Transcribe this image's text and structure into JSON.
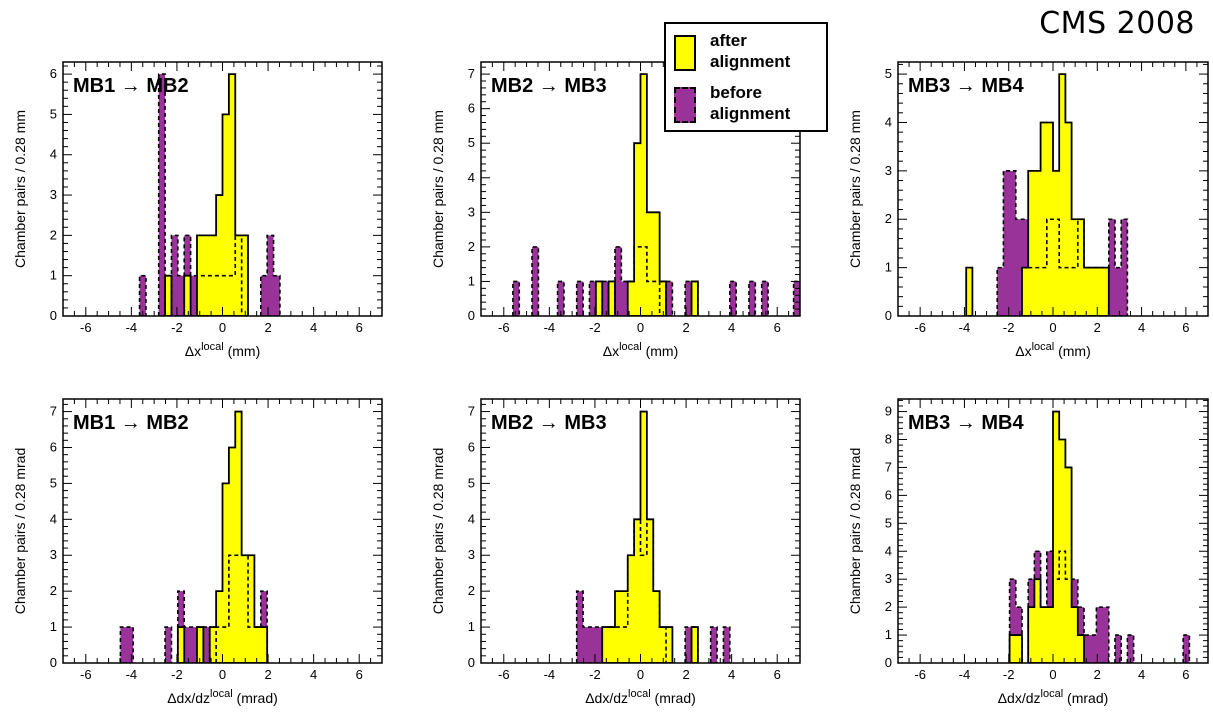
{
  "figure_label": "CMS 2008",
  "legend": {
    "after": {
      "label": "after\nalignment",
      "color": "#ffff00"
    },
    "before": {
      "label": "before\nalignment",
      "color": "#993399"
    }
  },
  "chart_data": [
    {
      "type": "bar",
      "title": "MB1 → MB2",
      "xlabel": "Δx^local (mm)",
      "ylabel": "Chamber pairs / 0.28 mm",
      "xlim": [
        -7,
        7
      ],
      "ylim": [
        0,
        6.3
      ],
      "bin_width": 0.28,
      "xticks": [
        -6,
        -4,
        -2,
        0,
        2,
        4,
        6
      ],
      "yticks": [
        0,
        1,
        2,
        3,
        4,
        5,
        6
      ],
      "series": [
        {
          "name": "after alignment",
          "bins": [
            [
              -2.52,
              1
            ],
            [
              -1.68,
              1
            ],
            [
              -1.12,
              2
            ],
            [
              -0.84,
              2
            ],
            [
              -0.56,
              2
            ],
            [
              -0.28,
              3
            ],
            [
              0,
              5
            ],
            [
              0.28,
              6
            ],
            [
              0.56,
              2
            ],
            [
              0.84,
              2
            ]
          ]
        },
        {
          "name": "before alignment",
          "bins": [
            [
              -3.64,
              1
            ],
            [
              -2.8,
              6
            ],
            [
              -2.24,
              2
            ],
            [
              -1.96,
              1
            ],
            [
              -1.68,
              2
            ],
            [
              -1.4,
              1
            ],
            [
              -1.12,
              1
            ],
            [
              -0.84,
              1
            ],
            [
              -0.56,
              1
            ],
            [
              -0.28,
              1
            ],
            [
              0,
              1
            ],
            [
              0.28,
              1
            ],
            [
              0.56,
              2
            ],
            [
              1.68,
              1
            ],
            [
              1.96,
              2
            ],
            [
              2.24,
              1
            ]
          ]
        }
      ]
    },
    {
      "type": "bar",
      "title": "MB2 → MB3",
      "xlabel": "Δx^local (mm)",
      "ylabel": "Chamber pairs / 0.28 mm",
      "xlim": [
        -7,
        7
      ],
      "ylim": [
        0,
        7.35
      ],
      "bin_width": 0.28,
      "xticks": [
        -6,
        -4,
        -2,
        0,
        2,
        4,
        6
      ],
      "yticks": [
        0,
        1,
        2,
        3,
        4,
        5,
        6,
        7
      ],
      "series": [
        {
          "name": "after alignment",
          "bins": [
            [
              -1.96,
              1
            ],
            [
              -1.4,
              1
            ],
            [
              -0.56,
              1
            ],
            [
              -0.28,
              5
            ],
            [
              0,
              7
            ],
            [
              0.28,
              3
            ],
            [
              0.56,
              3
            ],
            [
              0.84,
              1
            ],
            [
              2.24,
              1
            ]
          ]
        },
        {
          "name": "before alignment",
          "bins": [
            [
              -5.6,
              1
            ],
            [
              -4.76,
              2
            ],
            [
              -3.64,
              1
            ],
            [
              -2.8,
              1
            ],
            [
              -2.24,
              1
            ],
            [
              -1.68,
              1
            ],
            [
              -1.12,
              2
            ],
            [
              -0.84,
              1
            ],
            [
              -0.56,
              1
            ],
            [
              -0.28,
              2
            ],
            [
              0,
              2
            ],
            [
              0.28,
              1
            ],
            [
              0.56,
              1
            ],
            [
              1.12,
              1
            ],
            [
              1.96,
              1
            ],
            [
              2.24,
              1
            ],
            [
              3.92,
              1
            ],
            [
              4.76,
              1
            ],
            [
              5.32,
              1
            ],
            [
              6.72,
              1
            ]
          ]
        }
      ]
    },
    {
      "type": "bar",
      "title": "MB3 → MB4",
      "xlabel": "Δx^local (mm)",
      "ylabel": "Chamber pairs / 0.28 mm",
      "xlim": [
        -7,
        7
      ],
      "ylim": [
        0,
        5.25
      ],
      "bin_width": 0.28,
      "xticks": [
        -6,
        -4,
        -2,
        0,
        2,
        4,
        6
      ],
      "yticks": [
        0,
        1,
        2,
        3,
        4,
        5
      ],
      "series": [
        {
          "name": "after alignment",
          "bins": [
            [
              -3.92,
              1
            ],
            [
              -1.4,
              1
            ],
            [
              -1.12,
              3
            ],
            [
              -0.84,
              3
            ],
            [
              -0.56,
              4
            ],
            [
              -0.28,
              4
            ],
            [
              0,
              3
            ],
            [
              0.28,
              5
            ],
            [
              0.56,
              4
            ],
            [
              0.84,
              2
            ],
            [
              1.12,
              2
            ],
            [
              1.4,
              1
            ],
            [
              1.68,
              1
            ],
            [
              1.96,
              1
            ],
            [
              2.24,
              1
            ]
          ]
        },
        {
          "name": "before alignment",
          "bins": [
            [
              -2.52,
              1
            ],
            [
              -2.24,
              3
            ],
            [
              -1.96,
              3
            ],
            [
              -1.68,
              2
            ],
            [
              -1.4,
              2
            ],
            [
              -1.12,
              1
            ],
            [
              -0.84,
              1
            ],
            [
              -0.56,
              1
            ],
            [
              -0.28,
              2
            ],
            [
              0,
              2
            ],
            [
              0.28,
              1
            ],
            [
              0.56,
              1
            ],
            [
              0.84,
              1
            ],
            [
              1.12,
              2
            ],
            [
              1.4,
              1
            ],
            [
              1.68,
              1
            ],
            [
              1.96,
              1
            ],
            [
              2.24,
              1
            ],
            [
              2.52,
              2
            ],
            [
              2.8,
              1
            ],
            [
              3.08,
              2
            ]
          ]
        }
      ]
    },
    {
      "type": "bar",
      "title": "MB1 → MB2",
      "xlabel": "Δdx/dz^local (mrad)",
      "ylabel": "Chamber pairs / 0.28 mrad",
      "xlim": [
        -7,
        7
      ],
      "ylim": [
        0,
        7.35
      ],
      "bin_width": 0.28,
      "xticks": [
        -6,
        -4,
        -2,
        0,
        2,
        4,
        6
      ],
      "yticks": [
        0,
        1,
        2,
        3,
        4,
        5,
        6,
        7
      ],
      "series": [
        {
          "name": "after alignment",
          "bins": [
            [
              -1.96,
              1
            ],
            [
              -1.12,
              1
            ],
            [
              -0.56,
              1
            ],
            [
              -0.28,
              2
            ],
            [
              0,
              5
            ],
            [
              0.28,
              6
            ],
            [
              0.56,
              7
            ],
            [
              0.84,
              3
            ],
            [
              1.12,
              3
            ],
            [
              1.4,
              1
            ],
            [
              1.68,
              1
            ]
          ]
        },
        {
          "name": "before alignment",
          "bins": [
            [
              -4.48,
              1
            ],
            [
              -4.2,
              1
            ],
            [
              -2.52,
              1
            ],
            [
              -1.96,
              2
            ],
            [
              -1.68,
              1
            ],
            [
              -1.4,
              1
            ],
            [
              -1.12,
              1
            ],
            [
              -0.84,
              1
            ],
            [
              -0.28,
              1
            ],
            [
              0,
              1
            ],
            [
              0.28,
              3
            ],
            [
              0.56,
              3
            ],
            [
              0.84,
              3
            ],
            [
              1.12,
              1
            ],
            [
              1.4,
              1
            ],
            [
              1.68,
              2
            ]
          ]
        }
      ]
    },
    {
      "type": "bar",
      "title": "MB2 → MB3",
      "xlabel": "Δdx/dz^local (mrad)",
      "ylabel": "Chamber pairs / 0.28 mrad",
      "xlim": [
        -7,
        7
      ],
      "ylim": [
        0,
        7.35
      ],
      "bin_width": 0.28,
      "xticks": [
        -6,
        -4,
        -2,
        0,
        2,
        4,
        6
      ],
      "yticks": [
        0,
        1,
        2,
        3,
        4,
        5,
        6,
        7
      ],
      "series": [
        {
          "name": "after alignment",
          "bins": [
            [
              -1.68,
              1
            ],
            [
              -1.4,
              1
            ],
            [
              -1.12,
              2
            ],
            [
              -0.84,
              2
            ],
            [
              -0.56,
              3
            ],
            [
              -0.28,
              4
            ],
            [
              0,
              7
            ],
            [
              0.28,
              4
            ],
            [
              0.56,
              2
            ],
            [
              0.84,
              1
            ],
            [
              1.12,
              1
            ],
            [
              2.24,
              1
            ]
          ]
        },
        {
          "name": "before alignment",
          "bins": [
            [
              -2.8,
              2
            ],
            [
              -2.52,
              1
            ],
            [
              -2.24,
              1
            ],
            [
              -1.96,
              1
            ],
            [
              -1.68,
              1
            ],
            [
              -1.4,
              1
            ],
            [
              -1.12,
              1
            ],
            [
              -0.84,
              1
            ],
            [
              -0.56,
              3
            ],
            [
              -0.28,
              4
            ],
            [
              0,
              3
            ],
            [
              0.28,
              4
            ],
            [
              0.56,
              2
            ],
            [
              0.84,
              1
            ],
            [
              1.96,
              1
            ],
            [
              2.24,
              1
            ],
            [
              3.08,
              1
            ],
            [
              3.64,
              1
            ]
          ]
        }
      ]
    },
    {
      "type": "bar",
      "title": "MB3 → MB4",
      "xlabel": "Δdx/dz^local (mrad)",
      "ylabel": "Chamber pairs / 0.28 mrad",
      "xlim": [
        -7,
        7
      ],
      "ylim": [
        0,
        9.45
      ],
      "bin_width": 0.28,
      "xticks": [
        -6,
        -4,
        -2,
        0,
        2,
        4,
        6
      ],
      "yticks": [
        0,
        1,
        2,
        3,
        4,
        5,
        6,
        7,
        8,
        9
      ],
      "series": [
        {
          "name": "after alignment",
          "bins": [
            [
              -1.96,
              1
            ],
            [
              -1.68,
              1
            ],
            [
              -1.12,
              2
            ],
            [
              -0.84,
              3
            ],
            [
              -0.56,
              2
            ],
            [
              -0.28,
              2
            ],
            [
              0,
              9
            ],
            [
              0.28,
              8
            ],
            [
              0.56,
              7
            ],
            [
              0.84,
              2
            ],
            [
              1.12,
              1
            ]
          ]
        },
        {
          "name": "before alignment",
          "bins": [
            [
              -1.96,
              3
            ],
            [
              -1.68,
              2
            ],
            [
              -1.12,
              3
            ],
            [
              -0.84,
              4
            ],
            [
              -0.56,
              2
            ],
            [
              -0.28,
              4
            ],
            [
              0,
              3
            ],
            [
              0.28,
              4
            ],
            [
              0.56,
              3
            ],
            [
              0.84,
              3
            ],
            [
              1.12,
              2
            ],
            [
              1.4,
              1
            ],
            [
              1.68,
              1
            ],
            [
              1.96,
              2
            ],
            [
              2.24,
              2
            ],
            [
              2.8,
              1
            ],
            [
              3.36,
              1
            ],
            [
              5.88,
              1
            ]
          ]
        }
      ]
    }
  ]
}
